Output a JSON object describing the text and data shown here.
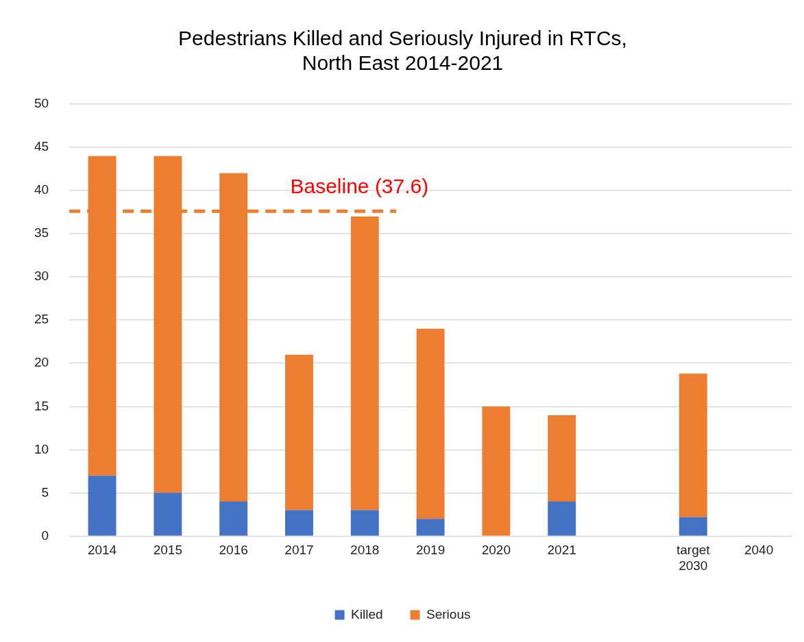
{
  "chart_data": {
    "type": "bar",
    "title": [
      "Pedestrians Killed and Seriously Injured in RTCs,",
      "North East 2014-2021"
    ],
    "categories": [
      "2014",
      "2015",
      "2016",
      "2017",
      "2018",
      "2019",
      "2020",
      "2021",
      null,
      "target\n2030",
      "2040"
    ],
    "stacked": true,
    "series": [
      {
        "name": "Killed",
        "color": "#4472c4",
        "values": [
          7,
          5,
          4,
          3,
          3,
          2,
          0,
          4,
          null,
          2.2,
          0
        ]
      },
      {
        "name": "Serious",
        "color": "#ed7d31",
        "values": [
          37,
          39,
          38,
          18,
          34,
          22,
          15,
          10,
          null,
          16.6,
          0
        ]
      }
    ],
    "ylim": [
      0,
      50
    ],
    "yticks": [
      0,
      5,
      10,
      15,
      20,
      25,
      30,
      35,
      40,
      45,
      50
    ],
    "grid": "y",
    "legend": "bottom",
    "ref_lines": [
      {
        "axis": "y",
        "value": 37.6,
        "label": "Baseline (37.6)",
        "color": "#ed7d31",
        "line_style": "dashed"
      }
    ]
  }
}
